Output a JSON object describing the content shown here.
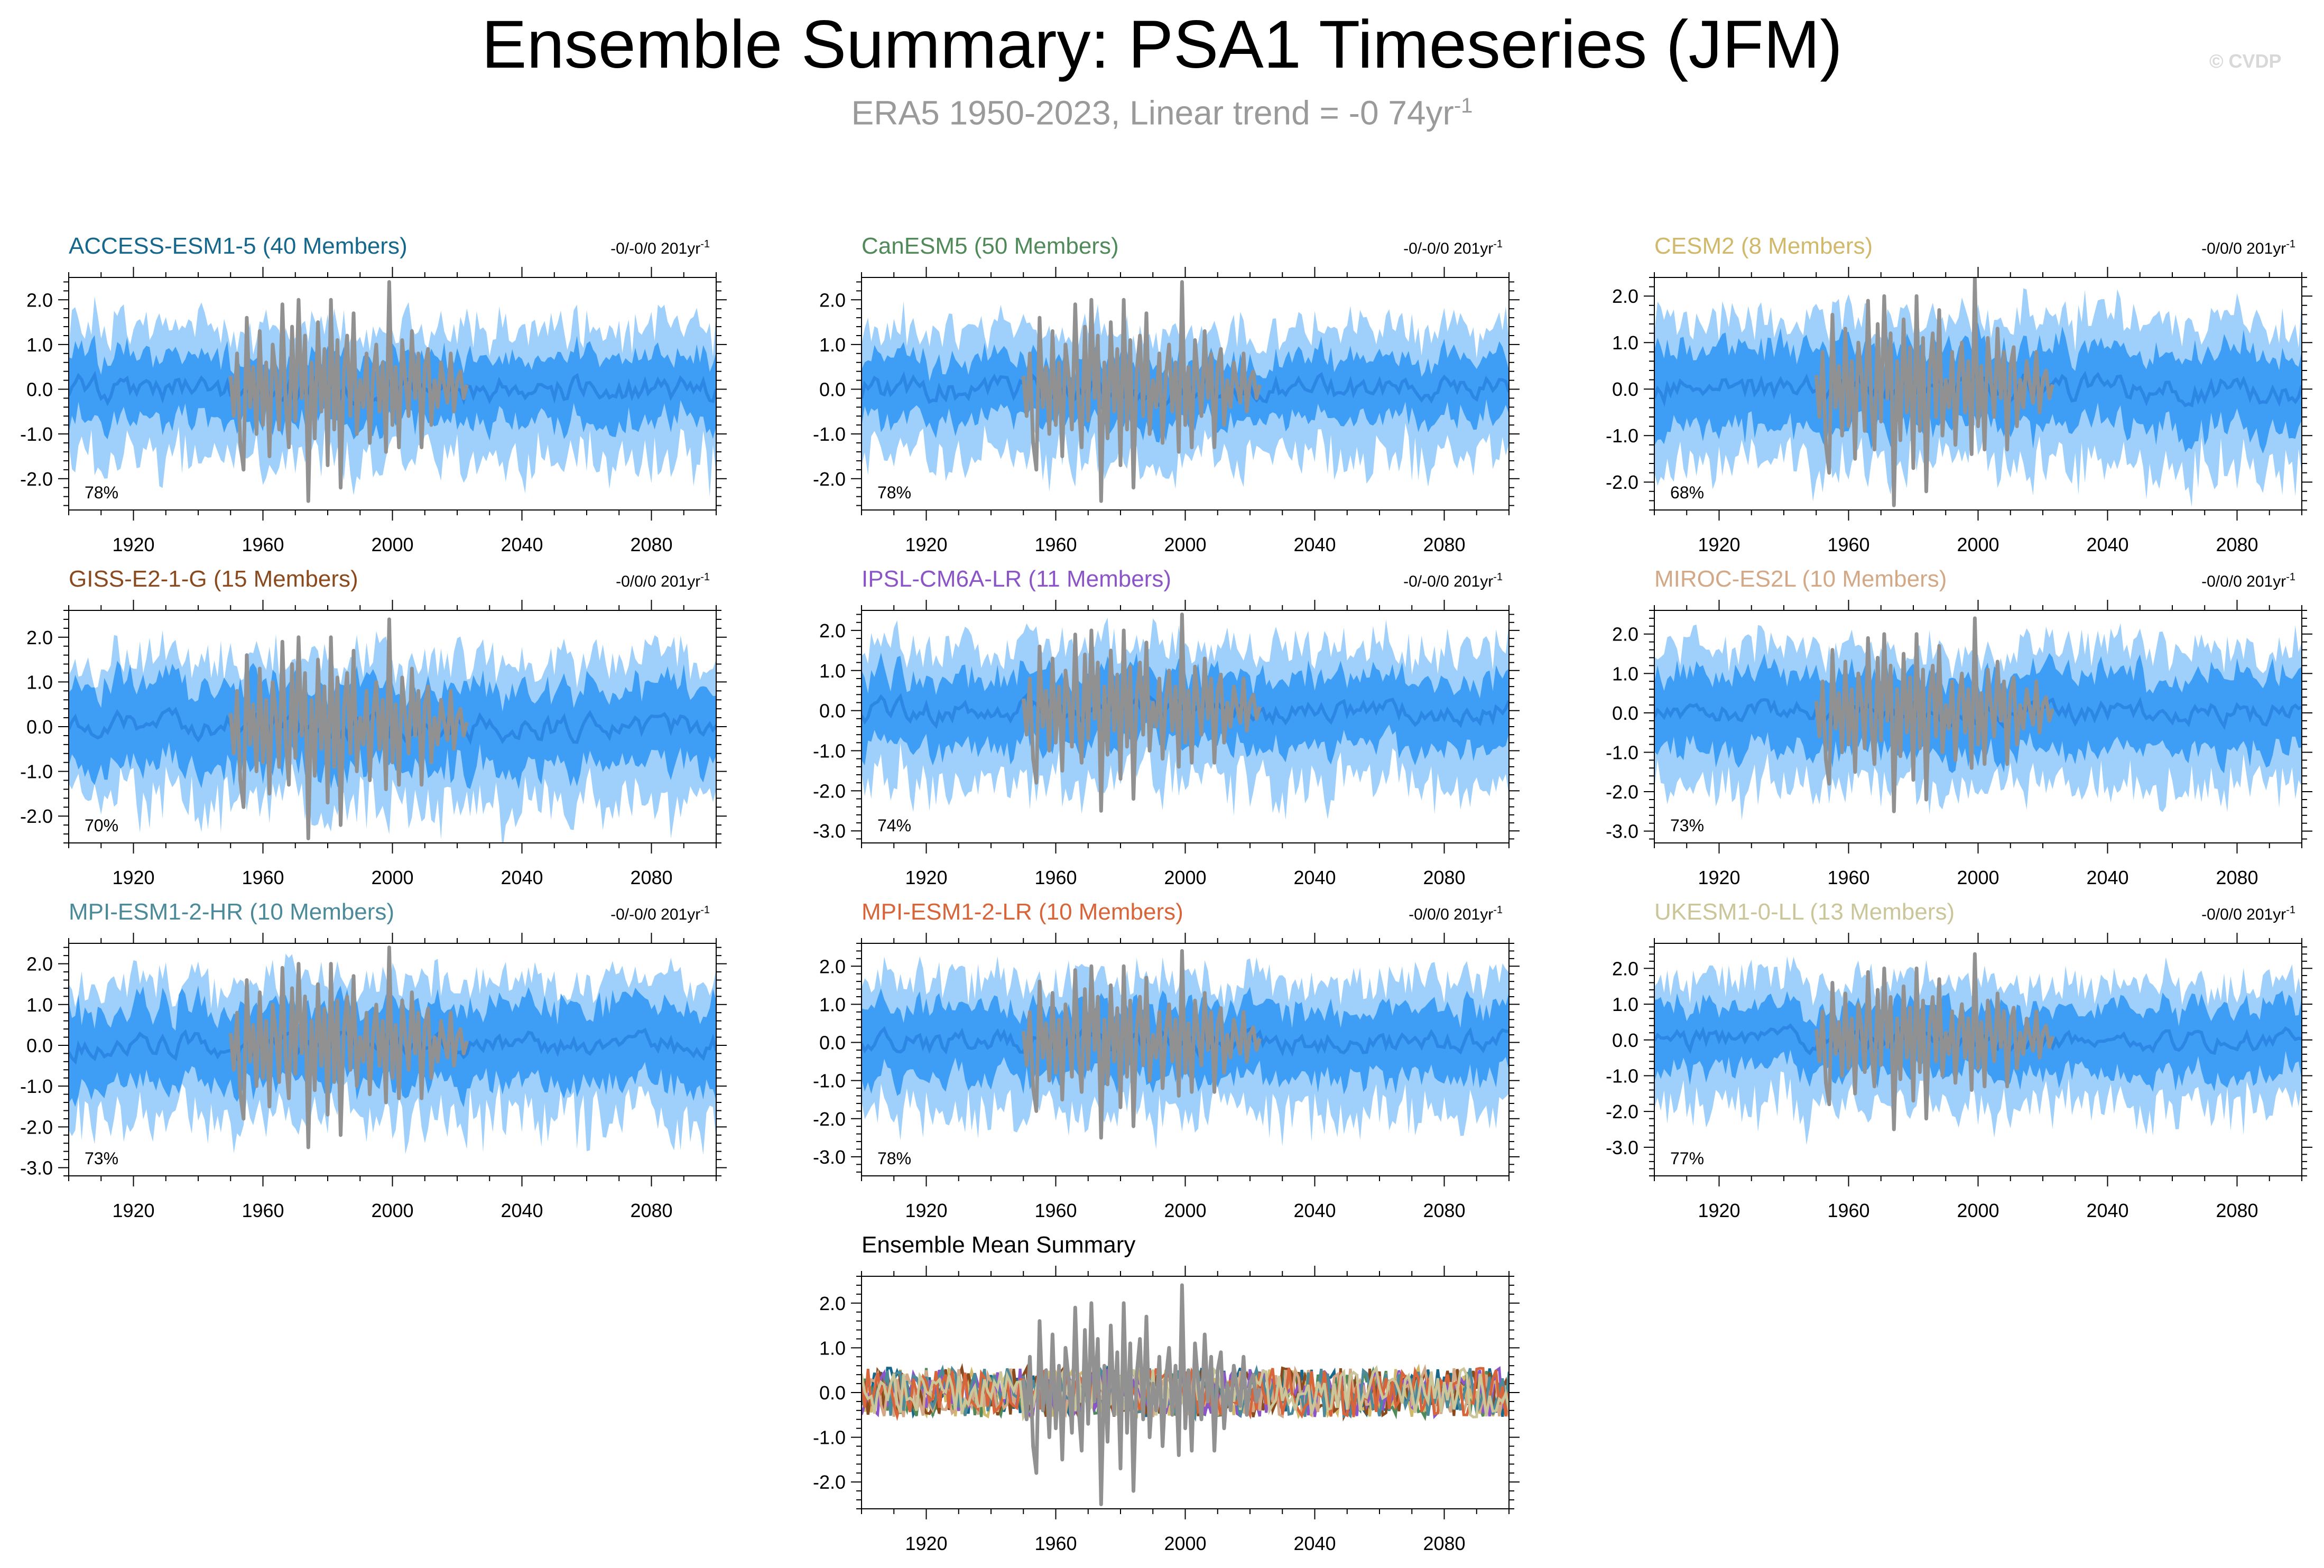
{
  "title": "Ensemble Summary: PSA1 Timeseries (JFM)",
  "subtitle": {
    "text": "ERA5 1950-2023, Linear trend = -0 74yr",
    "sup": "-1"
  },
  "credit": "© CVDP",
  "colors": {
    "band_outer": "#9fd0fb",
    "band_inner": "#3e9ef5",
    "mean_line": "#2b86e4",
    "obs_line": "#919191"
  },
  "chart_data": [
    {
      "type": "line",
      "name": "ACCESS-ESM1-5",
      "title": "ACCESS-ESM1-5 (40 Members)",
      "title_color": "#15678c",
      "trend_label": "-0/-0/0 201yr",
      "trend_sup": "-1",
      "percent_label": "78%",
      "ylim": [
        -2.7,
        2.5
      ],
      "yticks": [
        -2,
        -1,
        0,
        1,
        2
      ],
      "ytick_labels": [
        "-2.0",
        "-1.0",
        "0.0",
        "1.0",
        "2.0"
      ],
      "xlim": [
        1900,
        2100
      ],
      "xticks": [
        1920,
        1960,
        2000,
        2040,
        2080
      ],
      "xtick_labels": [
        "1920",
        "1960",
        "2000",
        "2040",
        "2080"
      ],
      "seed": 11,
      "outer": 1.35,
      "inner": 0.75
    },
    {
      "type": "line",
      "name": "CanESM5",
      "title": "CanESM5 (50 Members)",
      "title_color": "#4f8a58",
      "trend_label": "-0/-0/0 201yr",
      "trend_sup": "-1",
      "percent_label": "78%",
      "ylim": [
        -2.7,
        2.5
      ],
      "yticks": [
        -2,
        -1,
        0,
        1,
        2
      ],
      "ytick_labels": [
        "-2.0",
        "-1.0",
        "0.0",
        "1.0",
        "2.0"
      ],
      "xlim": [
        1900,
        2100
      ],
      "xticks": [
        1920,
        1960,
        2000,
        2040,
        2080
      ],
      "xtick_labels": [
        "1920",
        "1960",
        "2000",
        "2040",
        "2080"
      ],
      "seed": 23,
      "outer": 1.3,
      "inner": 0.7
    },
    {
      "type": "line",
      "name": "CESM2",
      "title": "CESM2 (8 Members)",
      "title_color": "#d1b96b",
      "trend_label": "-0/0/0 201yr",
      "trend_sup": "-1",
      "percent_label": "68%",
      "ylim": [
        -2.6,
        2.4
      ],
      "yticks": [
        -2,
        -1,
        0,
        1,
        2
      ],
      "ytick_labels": [
        "-2.0",
        "-1.0",
        "0.0",
        "1.0",
        "2.0"
      ],
      "xlim": [
        1900,
        2100
      ],
      "xticks": [
        1920,
        1960,
        2000,
        2040,
        2080
      ],
      "xtick_labels": [
        "1920",
        "1960",
        "2000",
        "2040",
        "2080"
      ],
      "seed": 37,
      "outer": 1.45,
      "inner": 0.9
    },
    {
      "type": "line",
      "name": "GISS-E2-1-G",
      "title": "GISS-E2-1-G (15 Members)",
      "title_color": "#8a4a1e",
      "trend_label": "-0/0/0 201yr",
      "trend_sup": "-1",
      "percent_label": "70%",
      "ylim": [
        -2.6,
        2.6
      ],
      "yticks": [
        -2,
        -1,
        0,
        1,
        2
      ],
      "ytick_labels": [
        "-2.0",
        "-1.0",
        "0.0",
        "1.0",
        "2.0"
      ],
      "xlim": [
        1900,
        2100
      ],
      "xticks": [
        1920,
        1960,
        2000,
        2040,
        2080
      ],
      "xtick_labels": [
        "1920",
        "1960",
        "2000",
        "2040",
        "2080"
      ],
      "seed": 41,
      "outer": 1.5,
      "inner": 0.95
    },
    {
      "type": "line",
      "name": "IPSL-CM6A-LR",
      "title": "IPSL-CM6A-LR (11 Members)",
      "title_color": "#8b55c8",
      "trend_label": "-0/-0/0 201yr",
      "trend_sup": "-1",
      "percent_label": "74%",
      "ylim": [
        -3.3,
        2.5
      ],
      "yticks": [
        -3,
        -2,
        -1,
        0,
        1,
        2
      ],
      "ytick_labels": [
        "-3.0",
        "-2.0",
        "-1.0",
        "0.0",
        "1.0",
        "2.0"
      ],
      "xlim": [
        1900,
        2100
      ],
      "xticks": [
        1920,
        1960,
        2000,
        2040,
        2080
      ],
      "xtick_labels": [
        "1920",
        "1960",
        "2000",
        "2040",
        "2080"
      ],
      "seed": 53,
      "outer": 1.6,
      "inner": 0.9
    },
    {
      "type": "line",
      "name": "MIROC-ES2L",
      "title": "MIROC-ES2L (10 Members)",
      "title_color": "#d2a886",
      "trend_label": "-0/0/0 201yr",
      "trend_sup": "-1",
      "percent_label": "73%",
      "ylim": [
        -3.3,
        2.6
      ],
      "yticks": [
        -3,
        -2,
        -1,
        0,
        1,
        2
      ],
      "ytick_labels": [
        "-3.0",
        "-2.0",
        "-1.0",
        "0.0",
        "1.0",
        "2.0"
      ],
      "xlim": [
        1900,
        2100
      ],
      "xticks": [
        1920,
        1960,
        2000,
        2040,
        2080
      ],
      "xtick_labels": [
        "1920",
        "1960",
        "2000",
        "2040",
        "2080"
      ],
      "seed": 67,
      "outer": 1.6,
      "inner": 1.0
    },
    {
      "type": "line",
      "name": "MPI-ESM1-2-HR",
      "title": "MPI-ESM1-2-HR (10 Members)",
      "title_color": "#4c8a9a",
      "trend_label": "-0/-0/0 201yr",
      "trend_sup": "-1",
      "percent_label": "73%",
      "ylim": [
        -3.2,
        2.5
      ],
      "yticks": [
        -3,
        -2,
        -1,
        0,
        1,
        2
      ],
      "ytick_labels": [
        "-3.0",
        "-2.0",
        "-1.0",
        "0.0",
        "1.0",
        "2.0"
      ],
      "xlim": [
        1900,
        2100
      ],
      "xticks": [
        1920,
        1960,
        2000,
        2040,
        2080
      ],
      "xtick_labels": [
        "1920",
        "1960",
        "2000",
        "2040",
        "2080"
      ],
      "seed": 79,
      "outer": 1.55,
      "inner": 1.0
    },
    {
      "type": "line",
      "name": "MPI-ESM1-2-LR",
      "title": "MPI-ESM1-2-LR (10 Members)",
      "title_color": "#d8643a",
      "trend_label": "-0/0/0 201yr",
      "trend_sup": "-1",
      "percent_label": "78%",
      "ylim": [
        -3.5,
        2.6
      ],
      "yticks": [
        -3,
        -2,
        -1,
        0,
        1,
        2
      ],
      "ytick_labels": [
        "-3.0",
        "-2.0",
        "-1.0",
        "0.0",
        "1.0",
        "2.0"
      ],
      "xlim": [
        1900,
        2100
      ],
      "xticks": [
        1920,
        1960,
        2000,
        2040,
        2080
      ],
      "xtick_labels": [
        "1920",
        "1960",
        "2000",
        "2040",
        "2080"
      ],
      "seed": 83,
      "outer": 1.6,
      "inner": 0.95
    },
    {
      "type": "line",
      "name": "UKESM1-0-LL",
      "title": "UKESM1-0-LL (13 Members)",
      "title_color": "#cbc69a",
      "trend_label": "-0/0/0 201yr",
      "trend_sup": "-1",
      "percent_label": "77%",
      "ylim": [
        -3.8,
        2.7
      ],
      "yticks": [
        -3,
        -2,
        -1,
        0,
        1,
        2
      ],
      "ytick_labels": [
        "-3.0",
        "-2.0",
        "-1.0",
        "0.0",
        "1.0",
        "2.0"
      ],
      "xlim": [
        1900,
        2100
      ],
      "xticks": [
        1920,
        1960,
        2000,
        2040,
        2080
      ],
      "xtick_labels": [
        "1920",
        "1960",
        "2000",
        "2040",
        "2080"
      ],
      "seed": 97,
      "outer": 1.6,
      "inner": 0.95
    },
    {
      "type": "line",
      "name": "Ensemble Mean Summary",
      "title": "Ensemble Mean Summary",
      "title_color": "#000000",
      "trend_label": "",
      "trend_sup": "",
      "percent_label": "",
      "ylim": [
        -2.6,
        2.6
      ],
      "yticks": [
        -2,
        -1,
        0,
        1,
        2
      ],
      "ytick_labels": [
        "-2.0",
        "-1.0",
        "0.0",
        "1.0",
        "2.0"
      ],
      "xlim": [
        1900,
        2100
      ],
      "xticks": [
        1920,
        1960,
        2000,
        2040,
        2080
      ],
      "xtick_labels": [
        "1920",
        "1960",
        "2000",
        "2040",
        "2080"
      ],
      "seed": 101,
      "series_colors": [
        "#15678c",
        "#4f8a58",
        "#d1b96b",
        "#8a4a1e",
        "#8b55c8",
        "#d2a886",
        "#4c8a9a",
        "#d8643a",
        "#cbc69a"
      ]
    }
  ],
  "observed": {
    "label": "ERA5",
    "years": [
      1950,
      1951,
      1952,
      1953,
      1954,
      1955,
      1956,
      1957,
      1958,
      1959,
      1960,
      1961,
      1962,
      1963,
      1964,
      1965,
      1966,
      1967,
      1968,
      1969,
      1970,
      1971,
      1972,
      1973,
      1974,
      1975,
      1976,
      1977,
      1978,
      1979,
      1980,
      1981,
      1982,
      1983,
      1984,
      1985,
      1986,
      1987,
      1988,
      1989,
      1990,
      1991,
      1992,
      1993,
      1994,
      1995,
      1996,
      1997,
      1998,
      1999,
      2000,
      2001,
      2002,
      2003,
      2004,
      2005,
      2006,
      2007,
      2008,
      2009,
      2010,
      2011,
      2012,
      2013,
      2014,
      2015,
      2016,
      2017,
      2018,
      2019,
      2020,
      2021,
      2022,
      2023
    ],
    "values": [
      0.3,
      -0.6,
      0.8,
      -1.2,
      -1.8,
      1.6,
      -0.4,
      0.5,
      -1.0,
      1.3,
      -0.8,
      0.6,
      -1.5,
      1.0,
      0.3,
      -0.9,
      1.9,
      -0.3,
      -1.3,
      1.4,
      -0.7,
      2.0,
      -0.2,
      1.2,
      -2.5,
      0.6,
      -1.1,
      1.5,
      -0.5,
      0.9,
      -1.7,
      2.0,
      -0.9,
      1.1,
      -2.2,
      0.4,
      1.2,
      -0.6,
      1.7,
      -1.0,
      0.2,
      -0.4,
      0.8,
      -1.2,
      0.3,
      1.0,
      -0.5,
      0.6,
      -1.4,
      2.4,
      -0.8,
      0.5,
      -1.3,
      1.1,
      0.2,
      -0.6,
      1.3,
      -0.2,
      0.8,
      -1.3,
      0.5,
      0.9,
      -0.8,
      0.2,
      -0.4,
      0.6,
      0.1,
      -0.3,
      0.8,
      -0.5,
      0.2,
      0.4,
      -0.2,
      0.1
    ]
  }
}
